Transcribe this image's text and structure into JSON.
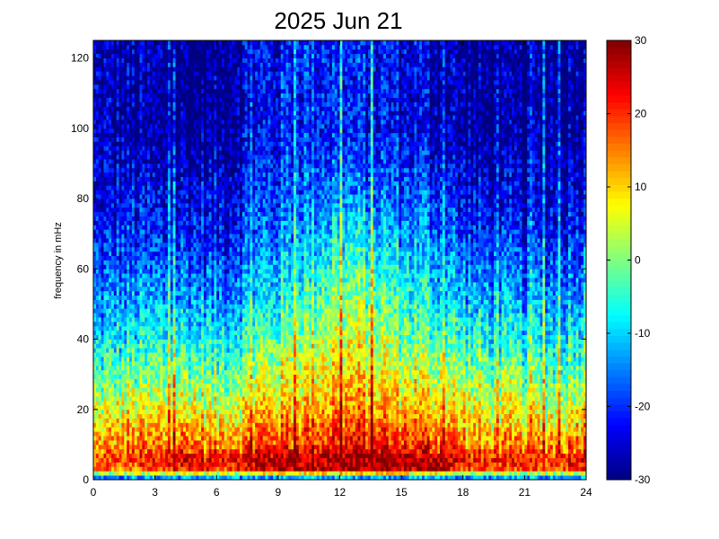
{
  "chart_data": {
    "type": "heatmap",
    "title": "2025 Jun 21",
    "xlabel": "",
    "ylabel": "frequency in mHz",
    "xlim": [
      0,
      24
    ],
    "ylim": [
      0,
      125
    ],
    "x_ticks": [
      0,
      3,
      6,
      9,
      12,
      15,
      18,
      21,
      24
    ],
    "y_ticks": [
      0,
      20,
      40,
      60,
      80,
      100,
      120
    ],
    "colorbar": {
      "min": -30,
      "max": 30,
      "ticks": [
        -30,
        -20,
        -10,
        0,
        10,
        20,
        30
      ],
      "colormap": "jet"
    },
    "x_bin_hours": 0.125,
    "y_bin_mhz": 1.25,
    "level_profile": {
      "hours": [
        0,
        1,
        2,
        3,
        4,
        5,
        6,
        7,
        8,
        9,
        10,
        11,
        12,
        13,
        14,
        15,
        16,
        17,
        18,
        19,
        20,
        21,
        22,
        23,
        24
      ],
      "freq_mhz": [
        0,
        3,
        6,
        10,
        20,
        30,
        40,
        50,
        60,
        70,
        80,
        100,
        125
      ],
      "values": [
        [
          -22,
          16,
          18,
          12,
          4,
          -4,
          -10,
          -15,
          -18,
          -22,
          -24,
          -26,
          -26
        ],
        [
          -22,
          16,
          19,
          14,
          5,
          -2,
          -9,
          -14,
          -18,
          -22,
          -24,
          -28,
          -28
        ],
        [
          -22,
          17,
          20,
          15,
          6,
          -2,
          -8,
          -13,
          -17,
          -20,
          -23,
          -28,
          -28
        ],
        [
          -22,
          18,
          21,
          15,
          6,
          -1,
          -7,
          -13,
          -17,
          -21,
          -24,
          -29,
          -29
        ],
        [
          -22,
          20,
          24,
          16,
          7,
          0,
          -6,
          -12,
          -17,
          -21,
          -24,
          -30,
          -30
        ],
        [
          -22,
          22,
          25,
          17,
          8,
          0,
          -6,
          -12,
          -16,
          -21,
          -24,
          -30,
          -30
        ],
        [
          -22,
          19,
          22,
          15,
          6,
          -2,
          -8,
          -14,
          -18,
          -22,
          -24,
          -30,
          -30
        ],
        [
          -22,
          20,
          23,
          16,
          7,
          0,
          -6,
          -12,
          -16,
          -20,
          -22,
          -26,
          -26
        ],
        [
          -22,
          25,
          27,
          18,
          10,
          3,
          -3,
          -9,
          -13,
          -17,
          -20,
          -24,
          -24
        ],
        [
          -22,
          26,
          27,
          19,
          11,
          5,
          -1,
          -7,
          -11,
          -15,
          -18,
          -22,
          -23
        ],
        [
          -22,
          26,
          28,
          20,
          12,
          7,
          2,
          -3,
          -8,
          -12,
          -16,
          -20,
          -20
        ],
        [
          -22,
          27,
          28,
          21,
          14,
          9,
          5,
          0,
          -5,
          -10,
          -15,
          -20,
          -20
        ],
        [
          -22,
          27,
          29,
          22,
          15,
          10,
          6,
          2,
          -3,
          -8,
          -14,
          -20,
          -20
        ],
        [
          -22,
          28,
          29,
          22,
          14,
          9,
          5,
          0,
          -4,
          -9,
          -15,
          -22,
          -22
        ],
        [
          -22,
          28,
          29,
          21,
          13,
          8,
          3,
          -2,
          -6,
          -11,
          -16,
          -22,
          -22
        ],
        [
          -22,
          27,
          28,
          20,
          12,
          6,
          0,
          -4,
          -8,
          -12,
          -17,
          -24,
          -24
        ],
        [
          -22,
          27,
          28,
          20,
          11,
          5,
          -1,
          -6,
          -10,
          -14,
          -18,
          -24,
          -24
        ],
        [
          -22,
          26,
          27,
          19,
          10,
          4,
          -2,
          -8,
          -12,
          -16,
          -20,
          -26,
          -26
        ],
        [
          -22,
          18,
          22,
          15,
          7,
          1,
          -5,
          -11,
          -15,
          -20,
          -23,
          -28,
          -28
        ],
        [
          -22,
          17,
          20,
          13,
          6,
          0,
          -6,
          -12,
          -16,
          -21,
          -24,
          -30,
          -30
        ],
        [
          -22,
          17,
          20,
          13,
          5,
          -1,
          -8,
          -13,
          -17,
          -22,
          -25,
          -30,
          -30
        ],
        [
          -22,
          18,
          21,
          14,
          5,
          -2,
          -9,
          -14,
          -18,
          -22,
          -25,
          -30,
          -30
        ],
        [
          -22,
          17,
          20,
          13,
          5,
          -2,
          -8,
          -13,
          -17,
          -22,
          -25,
          -28,
          -28
        ],
        [
          -22,
          18,
          21,
          14,
          6,
          -2,
          -8,
          -13,
          -17,
          -21,
          -24,
          -28,
          -28
        ],
        [
          -22,
          24,
          26,
          18,
          10,
          2,
          -4,
          -10,
          -14,
          -18,
          -22,
          -26,
          -26
        ]
      ]
    },
    "grid": false
  }
}
